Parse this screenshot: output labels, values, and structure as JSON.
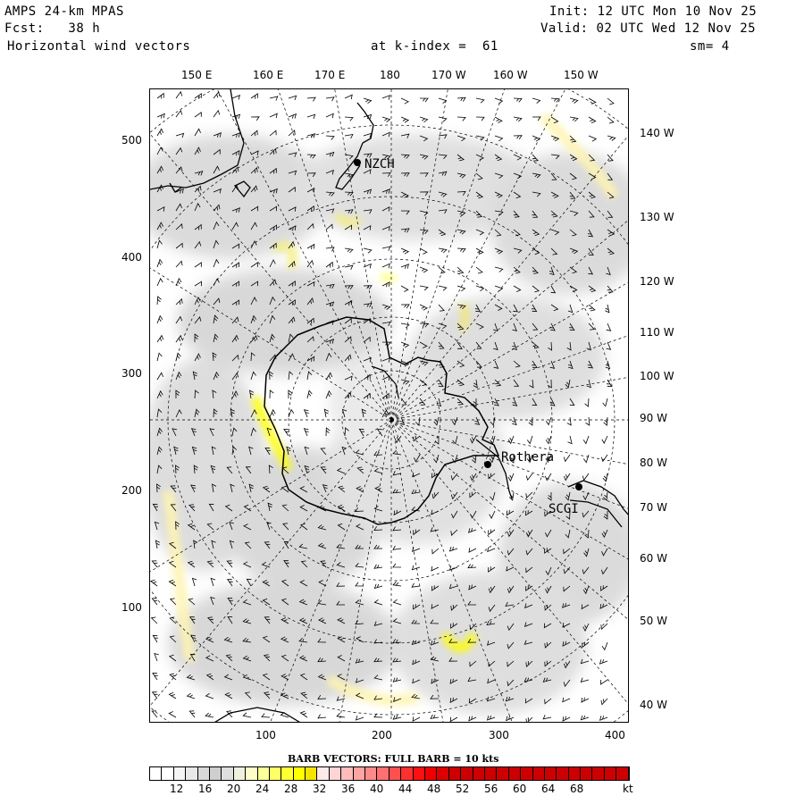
{
  "header": {
    "model": "AMPS 24-km MPAS",
    "fcst": "Fcst:   38 h",
    "field": "Horizontal wind vectors",
    "level": "at k-index =  61",
    "init": "Init: 12 UTC Mon 10 Nov 25",
    "valid": "Valid: 02 UTC Wed 12 Nov 25",
    "smooth": "sm= 4"
  },
  "top_lon_labels": [
    "150 E",
    "160 E",
    "170 E",
    "180",
    "170 W",
    "160 W",
    "150 W"
  ],
  "right_lon_labels": [
    "140 W",
    "130 W",
    "120 W",
    "110 W",
    "100 W",
    "90 W",
    "80 W",
    "70 W",
    "60 W",
    "50 W",
    "40 W"
  ],
  "y_axis": [
    "500",
    "400",
    "300",
    "200",
    "100"
  ],
  "x_axis": [
    "100",
    "200",
    "300",
    "400"
  ],
  "stations": [
    "NZCH",
    "Rothera",
    "SCGI"
  ],
  "colorbar": {
    "title": "BARB VECTORS:  FULL BARB = 10 kts",
    "labels": [
      "12",
      "16",
      "20",
      "24",
      "28",
      "32",
      "36",
      "40",
      "44",
      "48",
      "52",
      "56",
      "60",
      "64",
      "68"
    ],
    "unit": "kt",
    "colors": [
      "#ffffff",
      "#ffffff",
      "#f5f5f5",
      "#e8e8e8",
      "#d9d9d9",
      "#cfcfcf",
      "#dedede",
      "#f0f0e0",
      "#fffcc8",
      "#ffff99",
      "#ffff66",
      "#ffff33",
      "#ffff00",
      "#f5e400",
      "#ffe9e9",
      "#ffd4d4",
      "#ffbcbc",
      "#ffa3a3",
      "#ff8a8a",
      "#ff7070",
      "#ff5050",
      "#ff3030",
      "#ff1010",
      "#ee0000",
      "#dd0000",
      "#cc0000",
      "#cc0000",
      "#cc0000",
      "#cc0000",
      "#cc0000",
      "#cc0000",
      "#cc0000",
      "#cc0000",
      "#cc0000",
      "#cc0000",
      "#cc0000",
      "#cc0000",
      "#cc0000",
      "#cc0000",
      "#cc0000"
    ]
  }
}
